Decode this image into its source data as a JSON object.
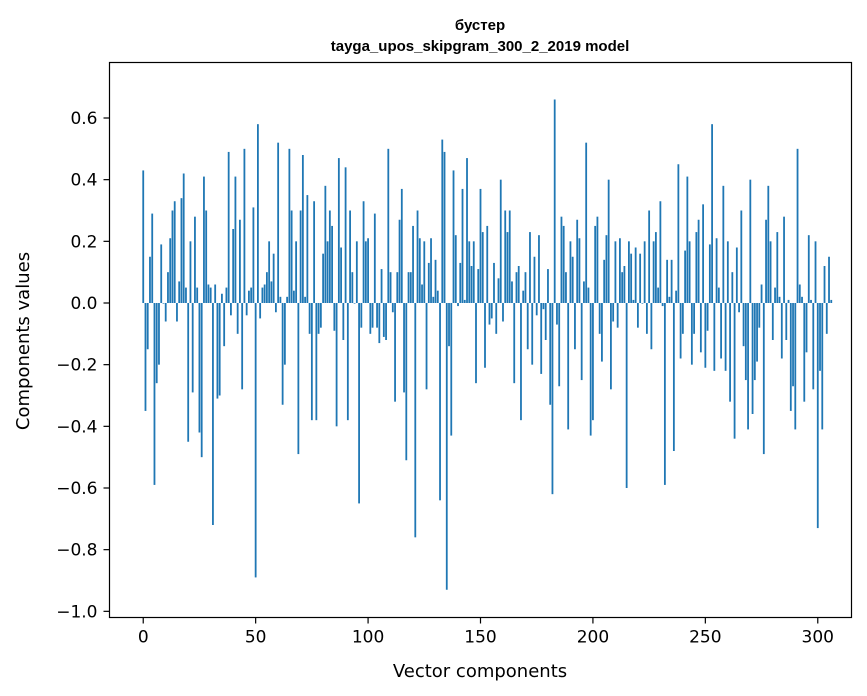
{
  "chart_data": {
    "type": "bar",
    "title": "бустер",
    "subtitle": "tayga_upos_skipgram_300_2_2019 model",
    "xlabel": "Vector components",
    "ylabel": "Components values",
    "xlim": [
      -15,
      315
    ],
    "ylim": [
      -1.02,
      0.78
    ],
    "xticks": [
      0,
      50,
      100,
      150,
      200,
      250,
      300
    ],
    "xtick_labels": [
      "0",
      "50",
      "100",
      "150",
      "200",
      "250",
      "300"
    ],
    "yticks": [
      -1.0,
      -0.8,
      -0.6,
      -0.4,
      -0.2,
      0.0,
      0.2,
      0.4,
      0.6
    ],
    "ytick_labels": [
      "−1.0",
      "−0.8",
      "−0.6",
      "−0.4",
      "−0.2",
      "0.0",
      "0.2",
      "0.4",
      "0.6"
    ],
    "bar_color": "#1f77b4",
    "values": [
      0.43,
      -0.35,
      -0.15,
      0.15,
      0.29,
      -0.59,
      -0.26,
      -0.2,
      0.19,
      0.0,
      -0.06,
      0.1,
      0.21,
      0.3,
      0.33,
      -0.06,
      0.07,
      0.34,
      0.42,
      0.05,
      -0.45,
      0.2,
      -0.29,
      0.28,
      0.05,
      -0.42,
      -0.5,
      0.41,
      0.3,
      0.06,
      0.05,
      -0.72,
      0.06,
      -0.31,
      -0.3,
      0.03,
      -0.14,
      0.05,
      0.49,
      -0.04,
      0.24,
      0.41,
      -0.1,
      0.27,
      -0.28,
      0.5,
      -0.04,
      0.04,
      0.05,
      0.31,
      -0.89,
      0.58,
      -0.05,
      0.05,
      0.06,
      0.1,
      0.2,
      0.07,
      0.16,
      -0.03,
      0.52,
      0.02,
      -0.33,
      -0.2,
      0.02,
      0.5,
      0.3,
      0.04,
      0.2,
      -0.49,
      0.3,
      0.48,
      0.02,
      0.35,
      -0.1,
      -0.38,
      0.33,
      -0.38,
      -0.1,
      -0.08,
      0.16,
      0.38,
      0.2,
      0.3,
      0.25,
      -0.09,
      -0.4,
      0.47,
      0.18,
      -0.12,
      0.44,
      -0.38,
      0.3,
      0.1,
      0.0,
      0.2,
      -0.65,
      -0.08,
      0.33,
      0.2,
      0.21,
      -0.1,
      -0.08,
      0.29,
      -0.08,
      -0.13,
      0.11,
      -0.11,
      -0.12,
      0.5,
      0.1,
      -0.03,
      -0.32,
      0.1,
      0.27,
      0.37,
      -0.29,
      -0.51,
      0.1,
      0.1,
      0.25,
      -0.76,
      0.3,
      0.21,
      0.06,
      0.2,
      -0.28,
      0.13,
      0.21,
      0.02,
      0.14,
      0.04,
      -0.64,
      0.53,
      0.49,
      -0.93,
      -0.14,
      -0.43,
      0.43,
      0.22,
      -0.01,
      0.13,
      0.37,
      0.01,
      0.47,
      0.2,
      0.12,
      0.2,
      -0.26,
      0.11,
      0.37,
      0.23,
      -0.21,
      0.25,
      -0.07,
      -0.05,
      0.13,
      -0.1,
      0.08,
      0.4,
      -0.06,
      0.3,
      0.23,
      0.3,
      0.07,
      -0.26,
      0.1,
      0.12,
      -0.38,
      0.04,
      0.1,
      -0.15,
      0.23,
      -0.2,
      0.15,
      -0.04,
      0.22,
      -0.23,
      -0.02,
      -0.12,
      0.11,
      -0.33,
      -0.62,
      0.66,
      -0.07,
      -0.27,
      0.28,
      0.25,
      0.1,
      -0.41,
      0.2,
      0.15,
      -0.15,
      0.27,
      0.21,
      -0.25,
      0.07,
      0.52,
      0.05,
      -0.43,
      -0.38,
      0.25,
      0.28,
      -0.1,
      -0.19,
      0.14,
      0.22,
      0.4,
      -0.28,
      -0.06,
      0.2,
      -0.08,
      0.21,
      0.1,
      0.12,
      -0.6,
      0.2,
      0.16,
      0.01,
      0.18,
      -0.08,
      0.16,
      0.0,
      0.2,
      -0.1,
      0.3,
      -0.15,
      0.2,
      0.23,
      0.05,
      0.33,
      -0.01,
      -0.59,
      0.14,
      0.02,
      0.14,
      -0.48,
      0.04,
      0.45,
      -0.18,
      -0.1,
      0.17,
      0.41,
      0.2,
      -0.2,
      -0.1,
      0.23,
      0.27,
      -0.16,
      0.32,
      -0.21,
      -0.09,
      0.19,
      0.58,
      -0.22,
      0.21,
      0.05,
      -0.18,
      0.38,
      -0.22,
      0.2,
      -0.32,
      0.1,
      -0.44,
      0.18,
      -0.03,
      0.3,
      -0.14,
      -0.25,
      -0.41,
      0.4,
      -0.36,
      -0.25,
      -0.19,
      -0.08,
      0.06,
      -0.49,
      0.27,
      0.38,
      0.2,
      -0.12,
      0.05,
      0.23,
      0.02,
      -0.18,
      0.28,
      -0.12,
      0.01,
      -0.35,
      -0.27,
      -0.41,
      0.5,
      0.06,
      0.02,
      -0.32,
      -0.16,
      0.22,
      0.01,
      -0.28,
      0.2,
      -0.73,
      -0.22,
      -0.41,
      0.12,
      -0.1,
      0.15,
      0.01
    ]
  }
}
